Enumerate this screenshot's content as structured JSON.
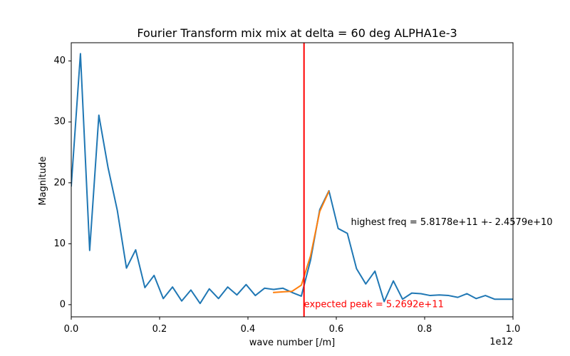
{
  "chart_data": {
    "type": "line",
    "title": "Fourier Transform mix mix at delta = 60 deg ALPHA1e-3",
    "xlabel": "wave number [/m]",
    "ylabel": "Magnitude",
    "x_offset_label": "1e12",
    "x_scale": 1000000000000.0,
    "xlim": [
      0,
      1.0
    ],
    "ylim": [
      -2,
      43
    ],
    "x_ticks": [
      0.0,
      0.2,
      0.4,
      0.6,
      0.8,
      1.0
    ],
    "x_tick_labels": [
      "0.0",
      "0.2",
      "0.4",
      "0.6",
      "0.8",
      "1.0"
    ],
    "y_ticks": [
      0,
      10,
      20,
      30,
      40
    ],
    "y_tick_labels": [
      "0",
      "10",
      "20",
      "30",
      "40"
    ],
    "grid": false,
    "series": [
      {
        "color": "#1f77b4",
        "x": [
          0.0,
          0.0208,
          0.0417,
          0.0625,
          0.0833,
          0.1042,
          0.125,
          0.1458,
          0.1667,
          0.1875,
          0.2083,
          0.2292,
          0.25,
          0.2708,
          0.2917,
          0.3125,
          0.3333,
          0.3542,
          0.375,
          0.3958,
          0.4167,
          0.4375,
          0.4583,
          0.4792,
          0.5,
          0.5208,
          0.5417,
          0.5625,
          0.5833,
          0.6042,
          0.625,
          0.6458,
          0.6667,
          0.6875,
          0.7083,
          0.7292,
          0.75,
          0.7708,
          0.7917,
          0.8125,
          0.8333,
          0.8542,
          0.875,
          0.8958,
          0.9167,
          0.9375,
          0.9583,
          0.9792,
          1.0
        ],
        "values": [
          19.5,
          41.2,
          8.9,
          31.1,
          22.5,
          15.5,
          6.0,
          9.0,
          2.8,
          4.8,
          1.0,
          2.9,
          0.6,
          2.4,
          0.2,
          2.6,
          1.0,
          2.9,
          1.6,
          3.3,
          1.5,
          2.7,
          2.5,
          2.7,
          2.0,
          1.4,
          7.3,
          15.6,
          18.7,
          12.5,
          11.7,
          5.9,
          3.4,
          5.5,
          0.5,
          3.9,
          0.9,
          1.9,
          1.8,
          1.5,
          1.6,
          1.5,
          1.2,
          1.8,
          1.0,
          1.5,
          0.9,
          0.9,
          0.9
        ]
      },
      {
        "color": "#ff7f0e",
        "x": [
          0.4583,
          0.4792,
          0.5,
          0.5208,
          0.5417,
          0.5625,
          0.5833
        ],
        "values": [
          2.0,
          2.1,
          2.2,
          3.2,
          8.0,
          15.3,
          18.6
        ]
      }
    ],
    "vline": {
      "x": 0.5269,
      "color": "#ff0000"
    },
    "annotations": {
      "highest": {
        "text": "highest freq = 5.8178e+11 +- 2.4579e+10",
        "x": 0.633,
        "y": 13.5,
        "color": "#000000"
      },
      "expected": {
        "text": "expected peak = 5.2692e+11",
        "x": 0.5269,
        "y": 0.0,
        "color": "#ff0000"
      }
    }
  }
}
